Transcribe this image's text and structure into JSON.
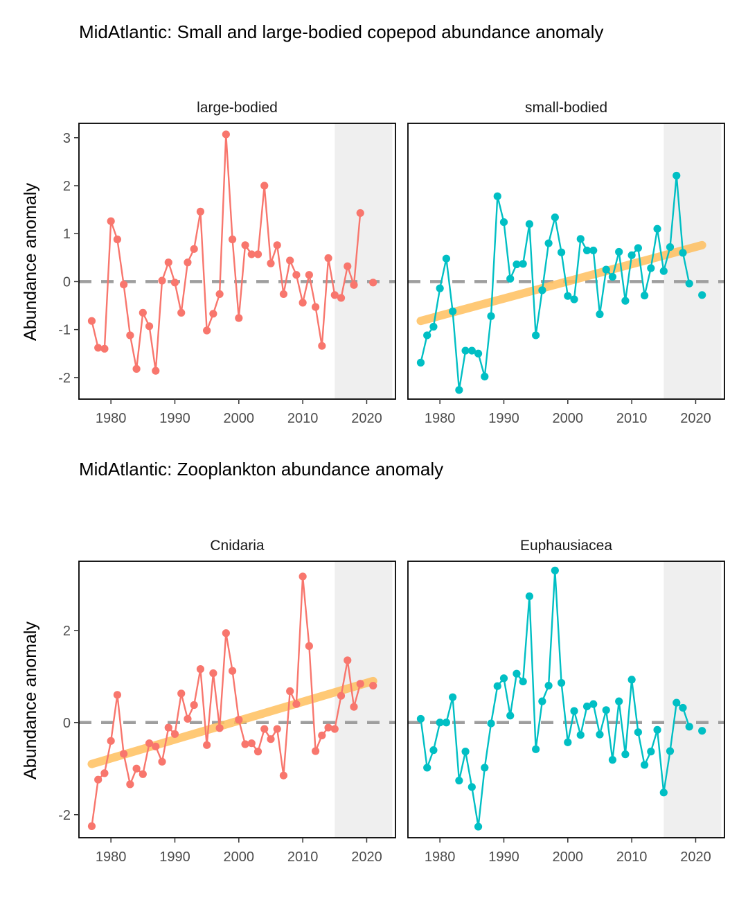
{
  "colors": {
    "red": "#F8766D",
    "teal": "#00BFC4",
    "trend": "#FFC05F",
    "zero_line": "#9E9E9E",
    "shade": "#EFEFEF"
  },
  "chart_data": [
    {
      "type": "line",
      "group_title": "MidAtlantic: Small and large-bodied copepod abundance anomaly",
      "title": "large-bodied",
      "ylabel": "Abundance anomaly",
      "xlim": [
        1975,
        2024.5
      ],
      "ylim": [
        -2.45,
        3.3
      ],
      "xticks": [
        1980,
        1990,
        2000,
        2010,
        2020
      ],
      "yticks": [
        -2,
        -1,
        0,
        1,
        2,
        3
      ],
      "shade_x": [
        2015,
        2024
      ],
      "reference_line_y": 0,
      "trend": null,
      "series": [
        {
          "color": "#F8766D",
          "x": [
            1977,
            1978,
            1979,
            1980,
            1981,
            1982,
            1983,
            1984,
            1985,
            1986,
            1987,
            1988,
            1989,
            1990,
            1991,
            1992,
            1993,
            1994,
            1995,
            1996,
            1997,
            1998,
            1999,
            2000,
            2001,
            2002,
            2003,
            2004,
            2005,
            2006,
            2007,
            2008,
            2009,
            2010,
            2011,
            2012,
            2013,
            2014,
            2015,
            2016,
            2017,
            2018,
            2019,
            2021
          ],
          "y": [
            -0.82,
            -1.38,
            -1.4,
            1.26,
            0.88,
            -0.06,
            -1.12,
            -1.82,
            -0.65,
            -0.93,
            -1.86,
            0.02,
            0.4,
            -0.02,
            -0.65,
            0.4,
            0.68,
            1.46,
            -1.02,
            -0.67,
            -0.26,
            3.07,
            0.88,
            -0.76,
            0.76,
            0.57,
            0.57,
            2.0,
            0.38,
            0.76,
            -0.26,
            0.44,
            0.14,
            -0.44,
            0.14,
            -0.53,
            -1.34,
            0.49,
            -0.28,
            -0.34,
            0.32,
            -0.07,
            1.43,
            -0.02
          ]
        }
      ]
    },
    {
      "type": "line",
      "title": "small-bodied",
      "xlim": [
        1975,
        2024.5
      ],
      "ylim": [
        -2.45,
        3.3
      ],
      "xticks": [
        1980,
        1990,
        2000,
        2010,
        2020
      ],
      "shade_x": [
        2015,
        2024
      ],
      "reference_line_y": 0,
      "trend": {
        "x": [
          1977,
          2021
        ],
        "y": [
          -0.82,
          0.76
        ]
      },
      "series": [
        {
          "color": "#00BFC4",
          "x": [
            1977,
            1978,
            1979,
            1980,
            1981,
            1982,
            1983,
            1984,
            1985,
            1986,
            1987,
            1988,
            1989,
            1990,
            1991,
            1992,
            1993,
            1994,
            1995,
            1996,
            1997,
            1998,
            1999,
            2000,
            2001,
            2002,
            2003,
            2004,
            2005,
            2006,
            2007,
            2008,
            2009,
            2010,
            2011,
            2012,
            2013,
            2014,
            2015,
            2016,
            2017,
            2018,
            2019,
            2021
          ],
          "y": [
            -1.69,
            -1.12,
            -0.94,
            -0.14,
            0.48,
            -0.62,
            -2.26,
            -1.44,
            -1.44,
            -1.5,
            -1.98,
            -0.72,
            1.78,
            1.24,
            0.06,
            0.36,
            0.37,
            1.2,
            -1.12,
            -0.18,
            0.8,
            1.34,
            0.61,
            -0.3,
            -0.37,
            0.89,
            0.65,
            0.65,
            -0.68,
            0.25,
            0.1,
            0.62,
            -0.4,
            0.55,
            0.7,
            -0.29,
            0.28,
            1.1,
            0.22,
            0.72,
            2.21,
            0.6,
            -0.04,
            -0.28
          ]
        }
      ]
    },
    {
      "type": "line",
      "group_title": "MidAtlantic: Zooplankton abundance anomaly",
      "title": "Cnidaria",
      "ylabel": "Abundance anomaly",
      "xlim": [
        1975,
        2024.5
      ],
      "ylim": [
        -2.5,
        3.5
      ],
      "xticks": [
        1980,
        1990,
        2000,
        2010,
        2020
      ],
      "yticks": [
        -2,
        0,
        2
      ],
      "shade_x": [
        2015,
        2024
      ],
      "reference_line_y": 0,
      "trend": {
        "x": [
          1977,
          2021
        ],
        "y": [
          -0.9,
          0.9
        ]
      },
      "series": [
        {
          "color": "#F8766D",
          "x": [
            1977,
            1978,
            1979,
            1980,
            1981,
            1982,
            1983,
            1984,
            1985,
            1986,
            1987,
            1988,
            1989,
            1990,
            1991,
            1992,
            1993,
            1994,
            1995,
            1996,
            1997,
            1998,
            1999,
            2000,
            2001,
            2002,
            2003,
            2004,
            2005,
            2006,
            2007,
            2008,
            2009,
            2010,
            2011,
            2012,
            2013,
            2014,
            2015,
            2016,
            2017,
            2018,
            2019,
            2021
          ],
          "y": [
            -2.25,
            -1.24,
            -1.1,
            -0.4,
            0.6,
            -0.68,
            -1.34,
            -1.0,
            -1.12,
            -0.45,
            -0.52,
            -0.85,
            -0.11,
            -0.25,
            0.63,
            0.08,
            0.38,
            1.16,
            -0.49,
            1.07,
            -0.12,
            1.94,
            1.12,
            0.06,
            -0.47,
            -0.45,
            -0.63,
            -0.14,
            -0.36,
            -0.14,
            -1.15,
            0.68,
            0.4,
            3.17,
            1.66,
            -0.62,
            -0.28,
            -0.11,
            -0.14,
            0.58,
            1.35,
            0.34,
            0.84,
            0.8
          ]
        }
      ]
    },
    {
      "type": "line",
      "title": "Euphausiacea",
      "xlim": [
        1975,
        2024.5
      ],
      "ylim": [
        -2.5,
        3.5
      ],
      "xticks": [
        1980,
        1990,
        2000,
        2010,
        2020
      ],
      "shade_x": [
        2015,
        2024
      ],
      "reference_line_y": 0,
      "trend": null,
      "series": [
        {
          "color": "#00BFC4",
          "x": [
            1977,
            1978,
            1979,
            1980,
            1981,
            1982,
            1983,
            1984,
            1985,
            1986,
            1987,
            1988,
            1989,
            1990,
            1991,
            1992,
            1993,
            1994,
            1995,
            1996,
            1997,
            1998,
            1999,
            2000,
            2001,
            2002,
            2003,
            2004,
            2005,
            2006,
            2007,
            2008,
            2009,
            2010,
            2011,
            2012,
            2013,
            2014,
            2015,
            2016,
            2017,
            2018,
            2019,
            2021
          ],
          "y": [
            0.08,
            -0.98,
            -0.6,
            0.0,
            0.0,
            0.55,
            -1.26,
            -0.63,
            -1.4,
            -2.26,
            -0.98,
            -0.02,
            0.79,
            0.96,
            0.15,
            1.06,
            0.89,
            2.74,
            -0.58,
            0.46,
            0.8,
            3.3,
            0.86,
            -0.43,
            0.25,
            -0.27,
            0.35,
            0.4,
            -0.26,
            0.27,
            -0.81,
            0.46,
            -0.69,
            0.93,
            -0.21,
            -0.92,
            -0.63,
            -0.16,
            -1.52,
            -0.62,
            0.43,
            0.32,
            -0.09,
            -0.18
          ]
        }
      ]
    }
  ]
}
